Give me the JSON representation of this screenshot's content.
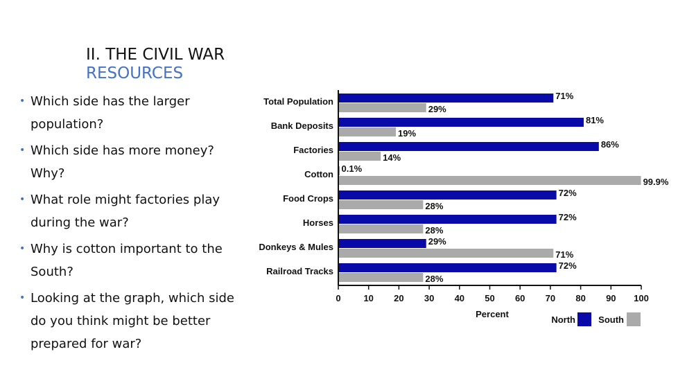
{
  "slide": {
    "title": "II. THE CIVIL WAR",
    "subtitle": "RESOURCES",
    "bullets": [
      "Which side has the larger population?",
      "Which side has more money? Why?",
      "What role might factories play during the war?",
      "Why is cotton important to the South?",
      "Looking at the graph, which side do you think might be better prepared for war?"
    ]
  },
  "chart_data": {
    "type": "bar",
    "orientation": "horizontal",
    "categories": [
      "Total Population",
      "Bank Deposits",
      "Factories",
      "Cotton",
      "Food Crops",
      "Horses",
      "Donkeys & Mules",
      "Railroad Tracks"
    ],
    "series": [
      {
        "name": "North",
        "color": "#0A0AA8",
        "values": [
          71,
          81,
          86,
          0.1,
          72,
          72,
          29,
          72
        ],
        "labels": [
          "71%",
          "81%",
          "86%",
          "0.1%",
          "72%",
          "72%",
          "29%",
          "72%"
        ]
      },
      {
        "name": "South",
        "color": "#AAAAAA",
        "values": [
          29,
          19,
          14,
          99.9,
          28,
          28,
          71,
          28
        ],
        "labels": [
          "29%",
          "19%",
          "14%",
          "99.9%",
          "28%",
          "28%",
          "71%",
          "28%"
        ]
      }
    ],
    "xlabel": "Percent",
    "xlim": [
      0,
      100
    ],
    "xticks": [
      "0",
      "10",
      "20",
      "30",
      "40",
      "50",
      "60",
      "70",
      "80",
      "90",
      "100"
    ],
    "legend_position": "bottom-right"
  }
}
